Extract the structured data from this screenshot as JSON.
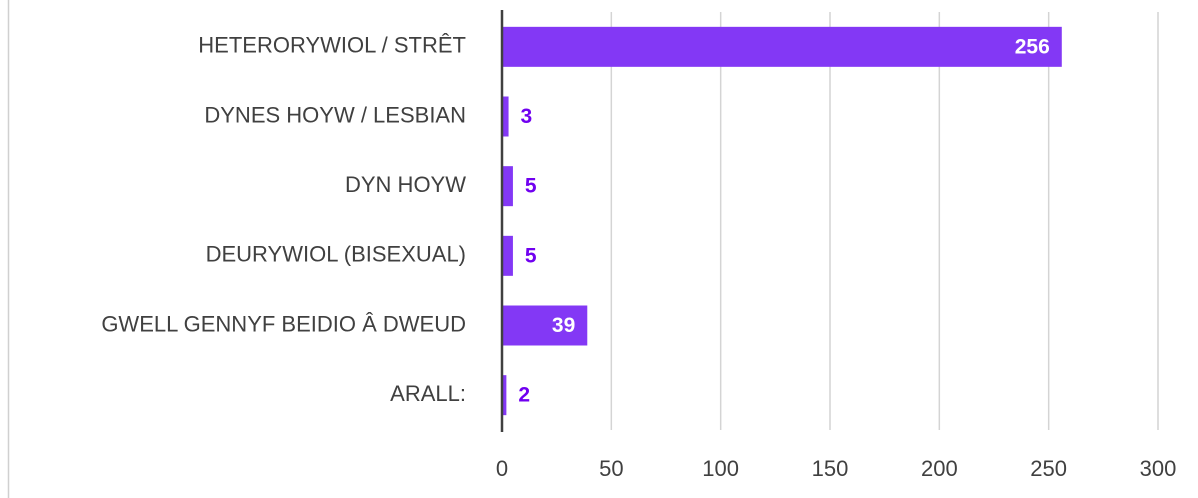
{
  "chart_data": {
    "type": "bar",
    "orientation": "horizontal",
    "categories": [
      "HETERORYWIOL / STRÊT",
      "DYNES HOYW / LESBIAN",
      "DYN HOYW",
      "DEURYWIOL (BISEXUAL)",
      "GWELL GENNYF BEIDIO Â DWEUD",
      "ARALL:"
    ],
    "values": [
      256,
      3,
      5,
      5,
      39,
      2
    ],
    "color": "#8338f5",
    "xlim": [
      0,
      300
    ],
    "xticks": [
      0,
      50,
      100,
      150,
      200,
      250,
      300
    ],
    "grid": true
  }
}
